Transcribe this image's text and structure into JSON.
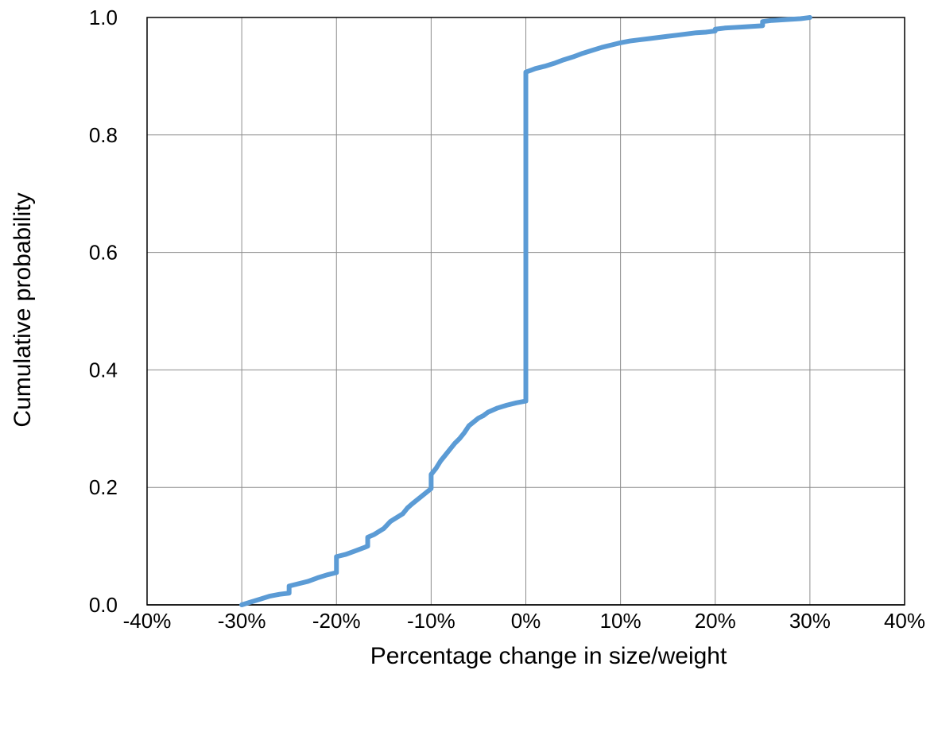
{
  "chart_data": {
    "type": "line",
    "title": "",
    "xlabel": "Percentage change in size/weight",
    "ylabel": "Cumulative probability",
    "xlim": [
      -0.4,
      0.4
    ],
    "ylim": [
      0,
      1
    ],
    "x_ticks": [
      {
        "value": -0.4,
        "label": "-40%"
      },
      {
        "value": -0.3,
        "label": "-30%"
      },
      {
        "value": -0.2,
        "label": "-20%"
      },
      {
        "value": -0.1,
        "label": "-10%"
      },
      {
        "value": 0.0,
        "label": "0%"
      },
      {
        "value": 0.1,
        "label": "10%"
      },
      {
        "value": 0.2,
        "label": "20%"
      },
      {
        "value": 0.3,
        "label": "30%"
      },
      {
        "value": 0.4,
        "label": "40%"
      }
    ],
    "y_ticks": [
      {
        "value": 0.0,
        "label": "0.0"
      },
      {
        "value": 0.2,
        "label": "0.2"
      },
      {
        "value": 0.4,
        "label": "0.4"
      },
      {
        "value": 0.6,
        "label": "0.6"
      },
      {
        "value": 0.8,
        "label": "0.8"
      },
      {
        "value": 1.0,
        "label": "1.0"
      }
    ],
    "grid": true,
    "legend": "none",
    "series_color": "#5B9BD5",
    "series": [
      {
        "x": [
          -0.3,
          -0.29,
          -0.28,
          -0.27,
          -0.26,
          -0.25,
          -0.25,
          -0.24,
          -0.23,
          -0.22,
          -0.21,
          -0.2,
          -0.2,
          -0.19,
          -0.18,
          -0.17,
          -0.167,
          -0.167,
          -0.16,
          -0.15,
          -0.143,
          -0.14,
          -0.13,
          -0.125,
          -0.12,
          -0.11,
          -0.1,
          -0.1,
          -0.095,
          -0.09,
          -0.085,
          -0.08,
          -0.075,
          -0.07,
          -0.065,
          -0.06,
          -0.05,
          -0.045,
          -0.04,
          -0.03,
          -0.02,
          -0.01,
          0.0,
          0.0,
          0.005,
          0.01,
          0.02,
          0.03,
          0.04,
          0.05,
          0.06,
          0.07,
          0.08,
          0.09,
          0.1,
          0.11,
          0.12,
          0.13,
          0.14,
          0.15,
          0.16,
          0.17,
          0.18,
          0.19,
          0.2,
          0.2,
          0.21,
          0.22,
          0.23,
          0.24,
          0.25,
          0.25,
          0.26,
          0.27,
          0.28,
          0.29,
          0.3
        ],
        "y": [
          0.0,
          0.005,
          0.01,
          0.015,
          0.018,
          0.02,
          0.032,
          0.036,
          0.04,
          0.046,
          0.051,
          0.055,
          0.082,
          0.086,
          0.092,
          0.098,
          0.1,
          0.115,
          0.12,
          0.13,
          0.142,
          0.145,
          0.155,
          0.165,
          0.172,
          0.185,
          0.198,
          0.222,
          0.232,
          0.245,
          0.255,
          0.265,
          0.275,
          0.283,
          0.293,
          0.305,
          0.318,
          0.322,
          0.328,
          0.335,
          0.34,
          0.344,
          0.347,
          0.907,
          0.91,
          0.913,
          0.917,
          0.922,
          0.928,
          0.933,
          0.939,
          0.944,
          0.949,
          0.953,
          0.957,
          0.96,
          0.962,
          0.964,
          0.966,
          0.968,
          0.97,
          0.972,
          0.974,
          0.975,
          0.977,
          0.98,
          0.982,
          0.983,
          0.984,
          0.985,
          0.986,
          0.993,
          0.995,
          0.996,
          0.997,
          0.998,
          1.0
        ]
      }
    ]
  }
}
